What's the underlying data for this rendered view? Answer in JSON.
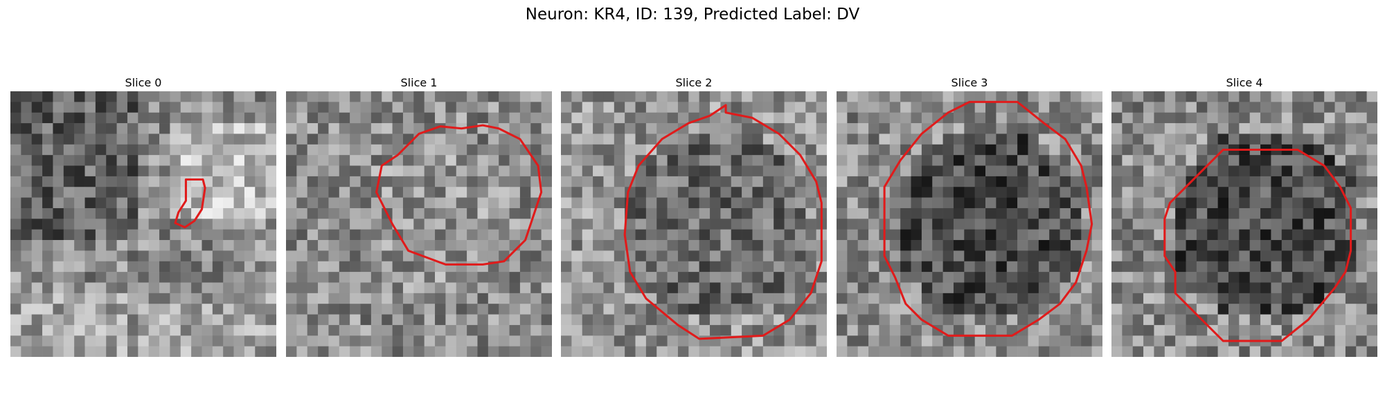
{
  "figure": {
    "title": "Neuron: KR4, ID: 139, Predicted Label: DV"
  },
  "slices": [
    {
      "title": "Slice 0",
      "seed": 11,
      "tone": "mixed",
      "contour_color": "#e01b1b",
      "contour": [
        [
          16.0,
          7.8
        ],
        [
          17.6,
          7.8
        ],
        [
          17.8,
          8.6
        ],
        [
          17.5,
          10.6
        ],
        [
          16.8,
          11.7
        ],
        [
          15.9,
          12.3
        ],
        [
          15.0,
          11.9
        ],
        [
          15.3,
          10.9
        ],
        [
          16.0,
          9.8
        ]
      ]
    },
    {
      "title": "Slice 1",
      "seed": 23,
      "tone": "light",
      "contour_color": "#e01b1b",
      "contour": [
        [
          19.5,
          3.0
        ],
        [
          21.5,
          4.0
        ],
        [
          23.2,
          6.5
        ],
        [
          23.5,
          9.0
        ],
        [
          22.0,
          13.5
        ],
        [
          20.0,
          15.5
        ],
        [
          18.0,
          15.8
        ],
        [
          14.5,
          15.8
        ],
        [
          11.0,
          14.5
        ],
        [
          9.5,
          12.0
        ],
        [
          8.0,
          9.0
        ],
        [
          8.5,
          6.5
        ],
        [
          10.0,
          5.5
        ],
        [
          12.0,
          3.5
        ],
        [
          14.0,
          2.8
        ],
        [
          16.0,
          3.0
        ],
        [
          18.0,
          2.7
        ]
      ]
    },
    {
      "title": "Slice 2",
      "seed": 37,
      "tone": "mid",
      "contour_color": "#e01b1b",
      "contour": [
        [
          15.0,
          1.5
        ],
        [
          17.5,
          2.0
        ],
        [
          20.0,
          3.5
        ],
        [
          22.0,
          5.5
        ],
        [
          23.5,
          8.0
        ],
        [
          24.0,
          10.0
        ],
        [
          24.0,
          15.5
        ],
        [
          23.0,
          18.5
        ],
        [
          21.0,
          21.0
        ],
        [
          18.5,
          22.5
        ],
        [
          12.5,
          22.8
        ],
        [
          10.5,
          21.5
        ],
        [
          7.5,
          19.0
        ],
        [
          6.0,
          16.5
        ],
        [
          5.5,
          13.0
        ],
        [
          5.8,
          9.0
        ],
        [
          6.8,
          6.5
        ],
        [
          9.0,
          4.0
        ],
        [
          11.5,
          2.5
        ],
        [
          13.5,
          1.8
        ],
        [
          15.0,
          0.8
        ]
      ]
    },
    {
      "title": "Slice 3",
      "seed": 51,
      "tone": "dark",
      "contour_color": "#e01b1b",
      "contour": [
        [
          16.5,
          0.5
        ],
        [
          19.0,
          2.5
        ],
        [
          21.0,
          4.0
        ],
        [
          22.5,
          6.5
        ],
        [
          23.0,
          8.5
        ],
        [
          23.5,
          12.0
        ],
        [
          23.0,
          14.5
        ],
        [
          22.0,
          17.5
        ],
        [
          20.5,
          19.5
        ],
        [
          18.5,
          21.0
        ],
        [
          16.0,
          22.5
        ],
        [
          10.0,
          22.5
        ],
        [
          7.5,
          21.0
        ],
        [
          6.0,
          19.5
        ],
        [
          5.0,
          17.0
        ],
        [
          4.0,
          15.0
        ],
        [
          4.0,
          8.5
        ],
        [
          5.5,
          6.0
        ],
        [
          7.5,
          3.5
        ],
        [
          10.0,
          1.5
        ],
        [
          12.0,
          0.5
        ]
      ]
    },
    {
      "title": "Slice 4",
      "seed": 67,
      "tone": "dark",
      "contour_color": "#e01b1b",
      "contour": [
        [
          17.0,
          5.0
        ],
        [
          19.5,
          6.5
        ],
        [
          21.0,
          8.5
        ],
        [
          22.0,
          10.5
        ],
        [
          22.0,
          14.5
        ],
        [
          21.5,
          16.5
        ],
        [
          20.5,
          18.0
        ],
        [
          18.0,
          21.0
        ],
        [
          15.5,
          23.0
        ],
        [
          10.0,
          23.0
        ],
        [
          8.5,
          21.5
        ],
        [
          7.5,
          20.5
        ],
        [
          5.5,
          18.5
        ],
        [
          5.5,
          16.5
        ],
        [
          4.5,
          15.0
        ],
        [
          4.5,
          11.5
        ],
        [
          5.0,
          10.0
        ],
        [
          6.5,
          8.5
        ],
        [
          8.5,
          6.5
        ],
        [
          10.0,
          5.0
        ]
      ]
    }
  ]
}
